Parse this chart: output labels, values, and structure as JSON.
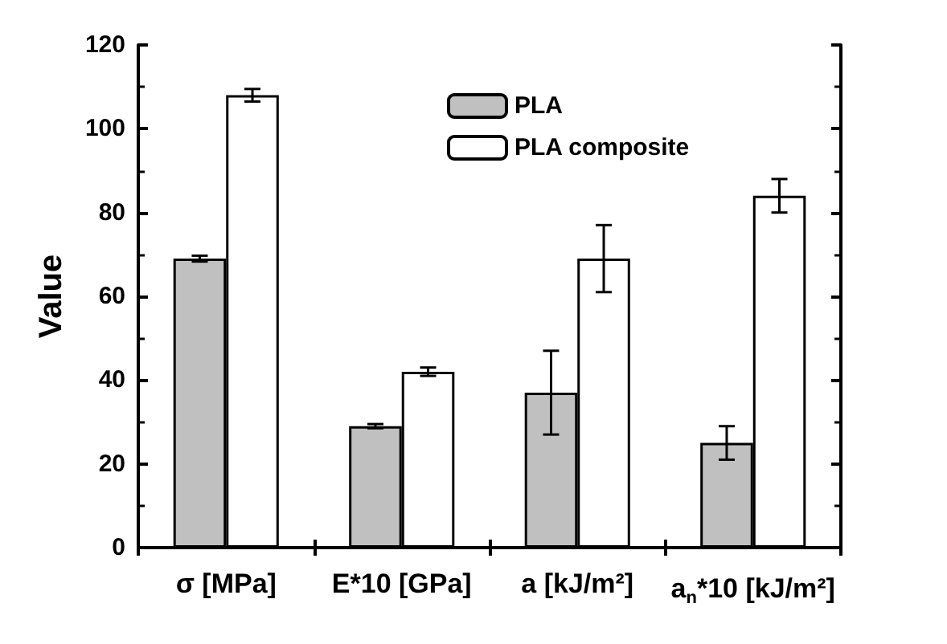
{
  "chart_data": {
    "type": "bar",
    "ylabel": "Value",
    "categories": [
      "σ [MPa]",
      "E*10 [GPa]",
      "a [kJ/m²]",
      "a$_{n}$*10 [kJ/m²]"
    ],
    "series": [
      {
        "name": "PLA",
        "color": "#c0c0c0",
        "values": [
          69,
          29,
          37,
          25
        ],
        "errors": [
          0.7,
          0.5,
          10,
          4
        ]
      },
      {
        "name": "PLA composite",
        "color": "#ffffff",
        "values": [
          108,
          42,
          69,
          84
        ],
        "errors": [
          1.5,
          1,
          8,
          4
        ]
      }
    ],
    "ylim": [
      0,
      120
    ],
    "yticks": [
      0,
      20,
      40,
      60,
      80,
      100,
      120
    ],
    "grid": false,
    "legend": "top"
  }
}
